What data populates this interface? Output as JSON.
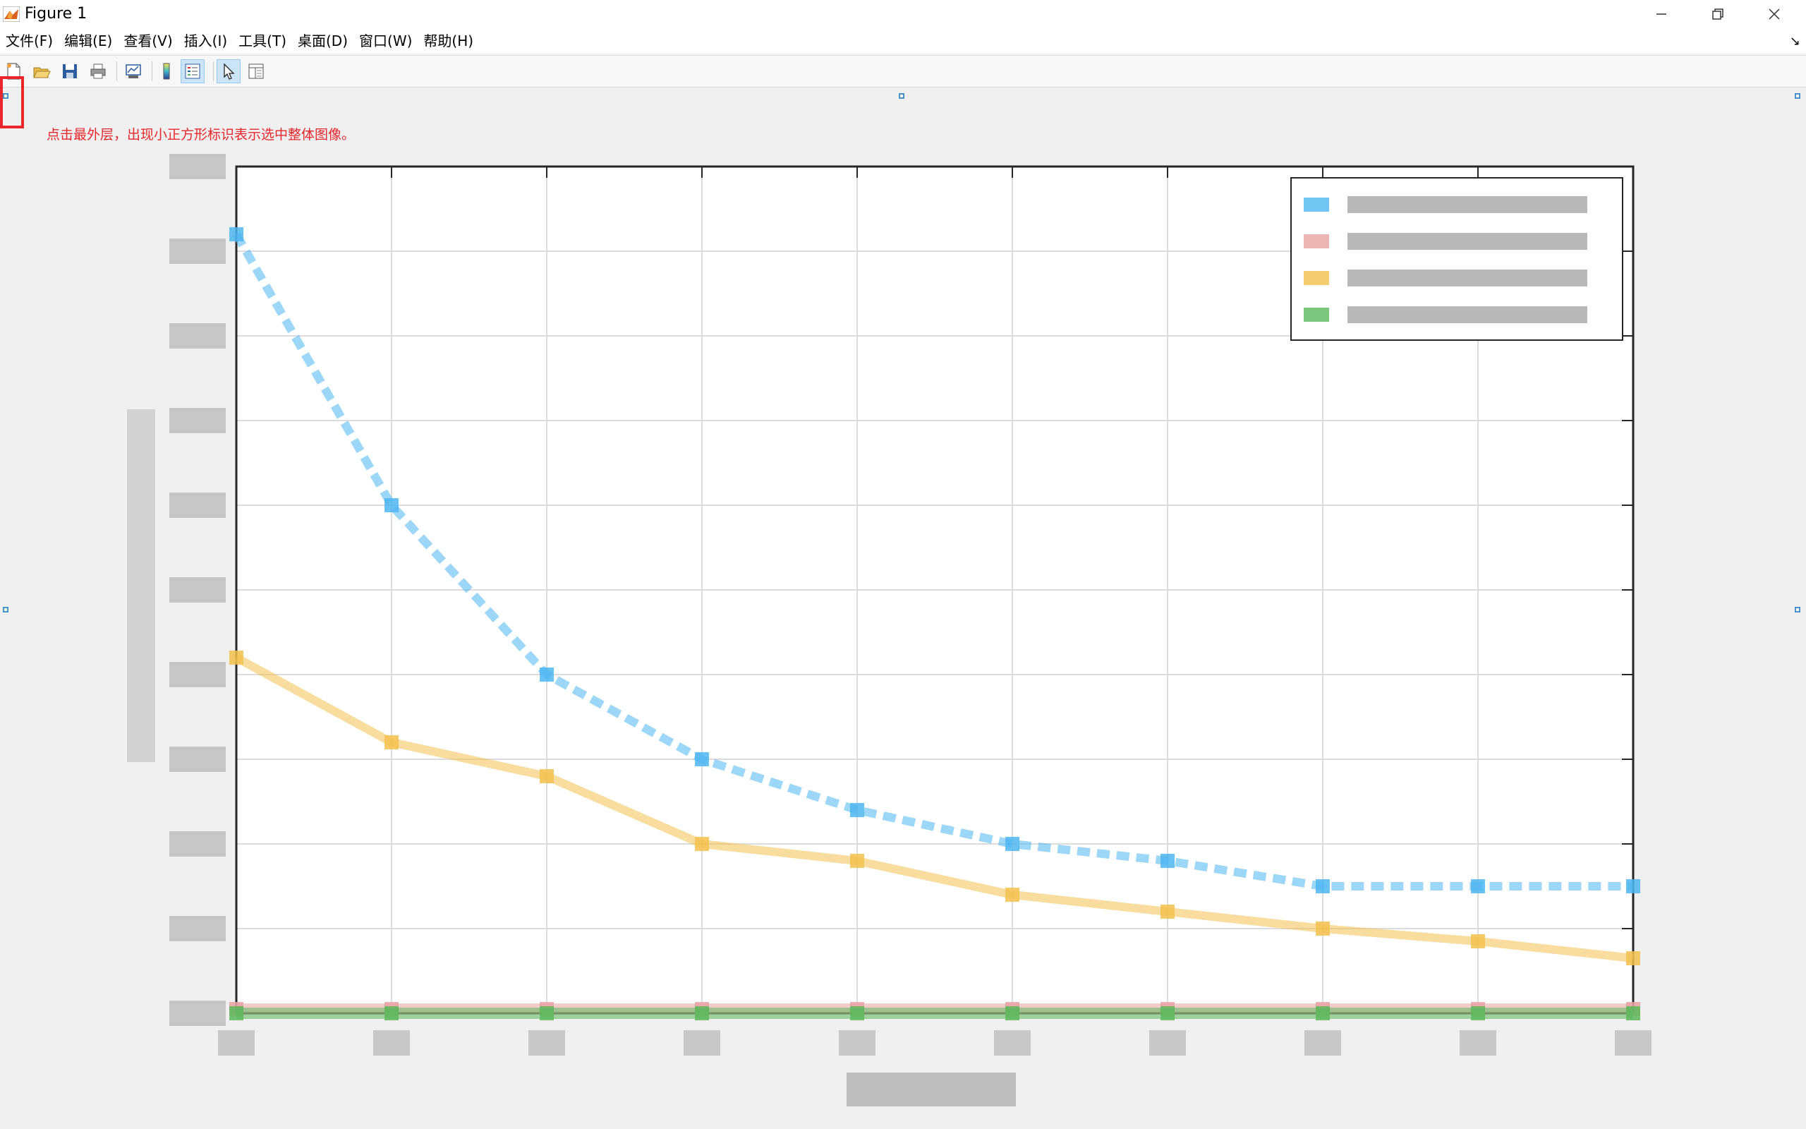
{
  "window": {
    "title": "Figure 1",
    "icon": "matlab-icon",
    "controls": [
      "minimize-icon",
      "restore-icon",
      "close-icon"
    ]
  },
  "menubar": {
    "items": [
      {
        "label": "文件(F)"
      },
      {
        "label": "编辑(E)"
      },
      {
        "label": "查看(V)"
      },
      {
        "label": "插入(I)"
      },
      {
        "label": "工具(T)"
      },
      {
        "label": "桌面(D)"
      },
      {
        "label": "窗口(W)"
      },
      {
        "label": "帮助(H)"
      }
    ],
    "overflow_glyph": "↘"
  },
  "toolbar": {
    "buttons": [
      {
        "icon": "new-figure-icon"
      },
      {
        "icon": "open-file-icon"
      },
      {
        "icon": "save-icon"
      },
      {
        "icon": "print-icon"
      },
      {
        "icon": "link-plot-icon"
      },
      {
        "icon": "insert-colorbar-icon"
      },
      {
        "icon": "insert-legend-icon"
      },
      {
        "icon": "edit-plot-pointer-icon",
        "active": true
      },
      {
        "icon": "property-inspector-icon"
      }
    ]
  },
  "annotation": {
    "text": "点击最外层，出现小正方形标识表示选中整体图像。",
    "color": "#e8262c"
  },
  "chart_data": {
    "type": "line",
    "note_visible": "labels and legend text are pixelated/obscured in the screenshot",
    "x": [
      0,
      1,
      2,
      3,
      4,
      5,
      6,
      7,
      8,
      9
    ],
    "ylim": [
      0,
      10
    ],
    "xlim": [
      0,
      9
    ],
    "grid": true,
    "legend": {
      "position": "top-right",
      "entries": 4
    },
    "series": [
      {
        "color": "#4db6f0",
        "values": [
          9.2,
          6.0,
          4.0,
          3.0,
          2.4,
          2.0,
          1.8,
          1.5,
          1.5,
          1.5
        ]
      },
      {
        "color": "#e8a1a1",
        "values": [
          0.05,
          0.05,
          0.05,
          0.05,
          0.05,
          0.05,
          0.05,
          0.05,
          0.05,
          0.05
        ]
      },
      {
        "color": "#f2c14e",
        "values": [
          4.2,
          3.2,
          2.8,
          2.0,
          1.8,
          1.4,
          1.2,
          1.0,
          0.85,
          0.65
        ]
      },
      {
        "color": "#5cb85c",
        "values": [
          0.0,
          0.0,
          0.0,
          0.0,
          0.0,
          0.0,
          0.0,
          0.0,
          0.0,
          0.0
        ]
      }
    ]
  }
}
